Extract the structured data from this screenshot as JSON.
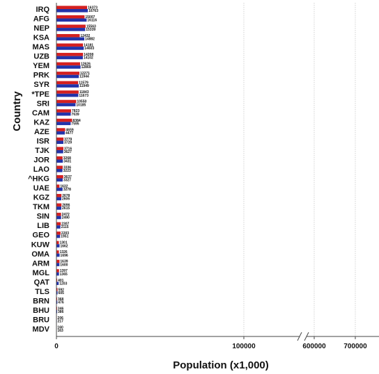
{
  "chart_data": {
    "type": "bar",
    "orientation": "horizontal",
    "xlabel": "Population (x1,000)",
    "ylabel": "Country",
    "axis_break": [
      150000,
      550000
    ],
    "xlim": [
      0,
      750000
    ],
    "x_ticks": [
      0,
      100000,
      600000,
      700000
    ],
    "x_tick_labels": [
      "0",
      "100000",
      "600000",
      "700000"
    ],
    "grid": "vertical dotted",
    "colors": {
      "series1": "#d42020",
      "series2": "#2233aa"
    },
    "categories": [
      "IRQ",
      "AFG",
      "NEP",
      "KSA",
      "MAS",
      "UZB",
      "YEM",
      "PRK",
      "SYR",
      "*TPE",
      "SRI",
      "CAM",
      "KAZ",
      "AZE",
      "ISR",
      "TJK",
      "JOR",
      "LAO",
      "^HKG",
      "UAE",
      "KGZ",
      "TKM",
      "SIN",
      "LIB",
      "GEO",
      "KUW",
      "OMA",
      "ARM",
      "MGL",
      "QAT",
      "TLS",
      "BRN",
      "BHU",
      "BRU",
      "MDV"
    ],
    "series": [
      {
        "values": [
          16373,
          15007,
          15563,
          12432,
          14181,
          14208,
          12626,
          12271,
          11579,
          11843,
          10550,
          7823,
          8384,
          4659,
          3779,
          3716,
          3268,
          3336,
          3637,
          1632,
          2678,
          2696,
          2472,
          2307,
          2203,
          1301,
          1326,
          1639,
          1397,
          401,
          592,
          368,
          346,
          206,
          160
        ]
      },
      {
        "values": [
          16763,
          16116,
          15339,
          14882,
          14603,
          14102,
          12869,
          11944,
          11949,
          11673,
          10185,
          7639,
          7595,
          4477,
          3729,
          3627,
          3431,
          3223,
          3327,
          3278,
          2606,
          2615,
          2490,
          2115,
          1951,
          1662,
          1696,
          1600,
          1365,
          1203,
          605,
          476,
          386,
          217,
          163
        ]
      }
    ]
  }
}
